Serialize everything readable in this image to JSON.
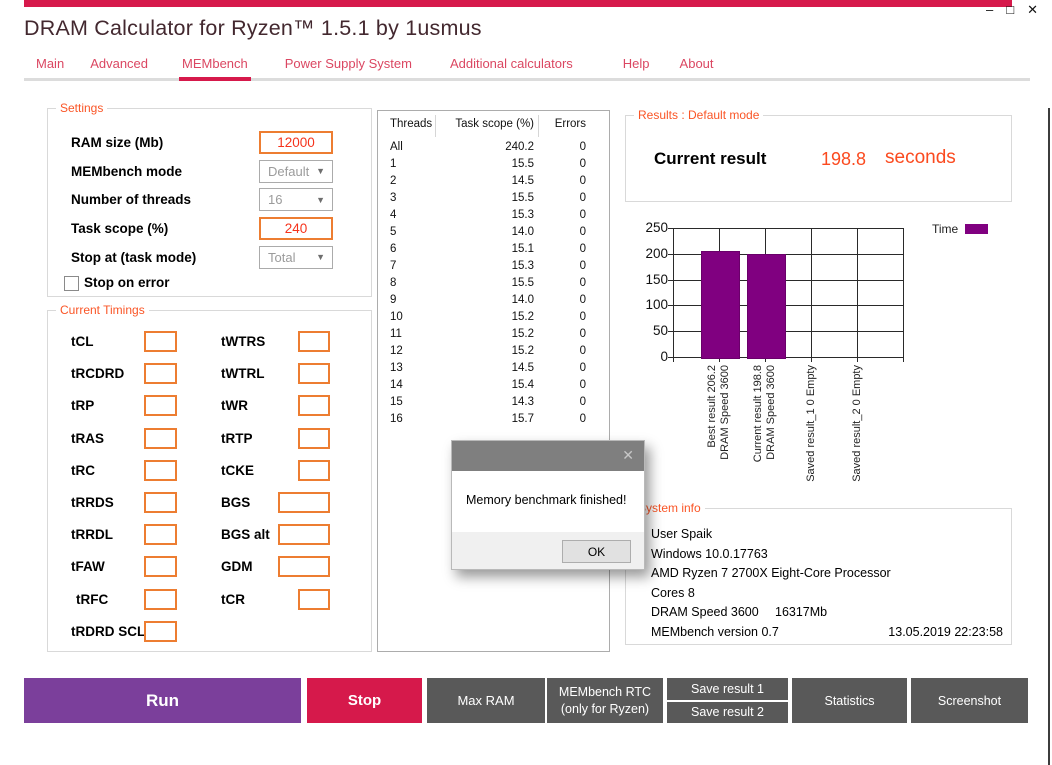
{
  "window": {
    "title": "DRAM Calculator for Ryzen™ 1.5.1 by 1usmus",
    "controls": {
      "minimize": "–",
      "maximize": "□",
      "close": "✕"
    }
  },
  "nav": {
    "tabs": [
      "Main",
      "Advanced",
      "MEMbench",
      "Power Supply System",
      "Additional calculators",
      "Help",
      "About"
    ],
    "active": "MEMbench"
  },
  "settings": {
    "title": "Settings",
    "rows": [
      {
        "label": "RAM size (Mb)",
        "value": "12000",
        "kind": "input"
      },
      {
        "label": "MEMbench mode",
        "value": "Default",
        "kind": "select"
      },
      {
        "label": "Number of threads",
        "value": "16",
        "kind": "select"
      },
      {
        "label": "Task scope (%)",
        "value": "240",
        "kind": "input"
      },
      {
        "label": "Stop at (task mode)",
        "value": "Total",
        "kind": "select"
      }
    ],
    "checkbox_label": "Stop on error",
    "checkbox_checked": false
  },
  "timings": {
    "title": "Current Timings",
    "left": [
      "tCL",
      "tRCDRD",
      "tRP",
      "tRAS",
      "tRC",
      "tRRDS",
      "tRRDL",
      "tFAW",
      "tRFC",
      "tRDRD SCL"
    ],
    "right": [
      {
        "label": "tWTRS",
        "wide": false
      },
      {
        "label": "tWTRL",
        "wide": false
      },
      {
        "label": "tWR",
        "wide": false
      },
      {
        "label": "tRTP",
        "wide": false
      },
      {
        "label": "tCKE",
        "wide": false
      },
      {
        "label": "BGS",
        "wide": true
      },
      {
        "label": "BGS alt",
        "wide": true
      },
      {
        "label": "GDM",
        "wide": true
      },
      {
        "label": "tCR",
        "wide": false
      }
    ]
  },
  "threads_table": {
    "headers": [
      "Threads",
      "Task scope (%)",
      "Errors"
    ],
    "rows": [
      [
        "All",
        "240.2",
        "0"
      ],
      [
        "1",
        "15.5",
        "0"
      ],
      [
        "2",
        "14.5",
        "0"
      ],
      [
        "3",
        "15.5",
        "0"
      ],
      [
        "4",
        "15.3",
        "0"
      ],
      [
        "5",
        "14.0",
        "0"
      ],
      [
        "6",
        "15.1",
        "0"
      ],
      [
        "7",
        "15.3",
        "0"
      ],
      [
        "8",
        "15.5",
        "0"
      ],
      [
        "9",
        "14.0",
        "0"
      ],
      [
        "10",
        "15.2",
        "0"
      ],
      [
        "11",
        "15.2",
        "0"
      ],
      [
        "12",
        "15.2",
        "0"
      ],
      [
        "13",
        "14.5",
        "0"
      ],
      [
        "14",
        "15.4",
        "0"
      ],
      [
        "15",
        "14.3",
        "0"
      ],
      [
        "16",
        "15.7",
        "0"
      ]
    ]
  },
  "results": {
    "title": "Results : Default mode",
    "label": "Current result",
    "value": "198.8",
    "unit": "seconds"
  },
  "chart_data": {
    "type": "bar",
    "categories": [
      [
        "Best result 206.2",
        "DRAM Speed 3600"
      ],
      [
        "Current result 198.8",
        "DRAM Speed 3600"
      ],
      [
        "Saved result_1 0 Empty"
      ],
      [
        "Saved result_2 0 Empty"
      ]
    ],
    "values": [
      206.2,
      198.8,
      0,
      0
    ],
    "ylim": [
      0,
      250
    ],
    "yticks": [
      0,
      50,
      100,
      150,
      200,
      250
    ],
    "grid": true,
    "legend": [
      {
        "label": "Time",
        "color": "#800080"
      }
    ],
    "legend_position": "top-right",
    "bar_color": "#800080",
    "title": "",
    "xlabel": "",
    "ylabel": ""
  },
  "system_info": {
    "title": "System info",
    "lines": [
      "User Spaik",
      "Windows 10.0.17763",
      "AMD Ryzen 7 2700X Eight-Core Processor",
      "Cores 8"
    ],
    "dram": {
      "label": "DRAM Speed 3600",
      "ram": "16317Mb"
    },
    "version": {
      "label": "MEMbench version 0.7",
      "datetime": "13.05.2019 22:23:58"
    }
  },
  "dialog": {
    "message": "Memory benchmark finished!",
    "ok_label": "OK",
    "close": "✕"
  },
  "actions": {
    "run": "Run",
    "stop": "Stop",
    "max_ram": "Max RAM",
    "rtc_line1": "MEMbench RTC",
    "rtc_line2": "(only for Ryzen)",
    "save1": "Save result 1",
    "save2": "Save result 2",
    "statistics": "Statistics",
    "screenshot": "Screenshot"
  },
  "colors": {
    "accent_crimson": "#D6194B",
    "accent_purple": "#7B3F9B",
    "button_gray": "#595959",
    "group_label_orange": "#FA5526",
    "input_border_orange": "#ED7D31",
    "input_text_red": "#F5331C",
    "bar_purple": "#800080"
  }
}
